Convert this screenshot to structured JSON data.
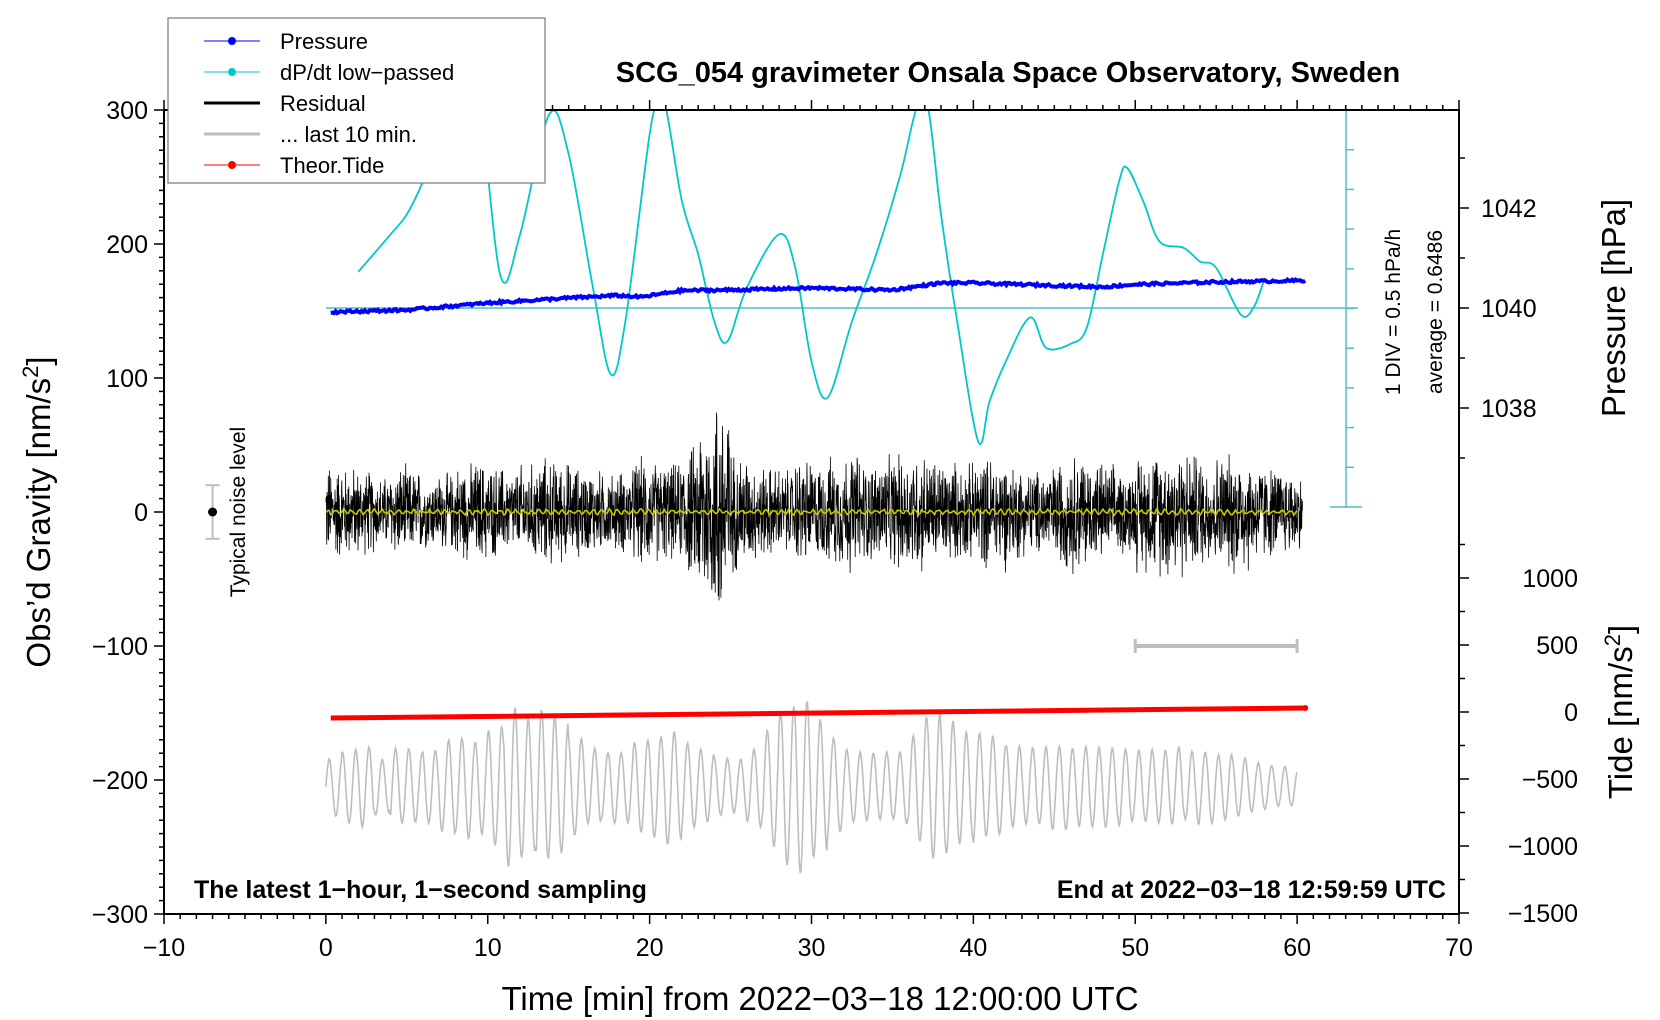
{
  "chart_data": {
    "type": "line",
    "title": "SCG_054 gravimeter Onsala Space Observatory, Sweden",
    "xlabel": "Time [min] from 2022−03−18 12:00:00 UTC",
    "ylabel_left": "Obs’d Gravity [nm/s",
    "ylabel_left_sup": "2",
    "ylabel_left_end": "]",
    "ylabel_right_pressure": "Pressure [hPa]",
    "ylabel_right_tide": "Tide [nm/s",
    "ylabel_right_tide_sup": "2",
    "ylabel_right_tide_end": "]",
    "xlim": [
      -10,
      70
    ],
    "ylim": [
      -300,
      300
    ],
    "x_ticks": [
      "−10",
      "0",
      "10",
      "20",
      "30",
      "40",
      "50",
      "60",
      "70"
    ],
    "y_ticks": [
      "300",
      "200",
      "100",
      "0",
      "−100",
      "−200",
      "−300"
    ],
    "pressure_ticks": [
      "1042",
      "1040",
      "1038"
    ],
    "tide_ticks": [
      "1000",
      "500",
      "0",
      "−500",
      "−1000",
      "−1500"
    ],
    "legend": {
      "placement": "top-left",
      "entries": [
        {
          "label": "Pressure",
          "color": "#0000ff",
          "marker": true
        },
        {
          "label": "dP/dt low−passed",
          "color": "#00c8c8",
          "marker": true
        },
        {
          "label": "Residual",
          "color": "#000000",
          "marker": false
        },
        {
          "label": "... last 10 min.",
          "color": "#bebebe",
          "marker": false
        },
        {
          "label": "Theor.Tide",
          "color": "#ff0000",
          "marker": true
        }
      ]
    },
    "dpdt_scale_label": "1 DIV = 0.5 hPa/h",
    "dpdt_average_label": "average = 0.6486",
    "dpdt_average": 0.6486,
    "noise_label": "Typical noise level",
    "noise_level": {
      "x": -7,
      "value": 0,
      "plusminus": 20
    },
    "footer_left": "The latest 1−hour, 1−second sampling",
    "footer_right": "End at 2022−03−18 12:59:59 UTC",
    "last10_bar": {
      "from": 50,
      "to": 60,
      "value": -100
    },
    "series": [
      {
        "name": "dP/dt low-passed",
        "unit": "hPa/h",
        "x": [
          2,
          4,
          5,
          6,
          7.5,
          8.5,
          9.5,
          10.8,
          12,
          13.8,
          15,
          16.5,
          17.6,
          18.5,
          20,
          20.5,
          21,
          22,
          23,
          24,
          24.8,
          26,
          28,
          29,
          30,
          31,
          32.5,
          34,
          35.5,
          36.5,
          37.2,
          38,
          39,
          40.3,
          41,
          42,
          43.5,
          44.5,
          46,
          47,
          48,
          49,
          49.5,
          50.5,
          51.5,
          53,
          54,
          55,
          56.5,
          57.3,
          58
        ],
        "y": [
          1.1,
          1.57,
          1.82,
          2.23,
          3.0,
          3.15,
          3.15,
          1.04,
          1.57,
          3.07,
          2.57,
          0.9,
          -0.18,
          0.48,
          2.82,
          3.15,
          3.15,
          1.98,
          1.32,
          0.48,
          0.23,
          0.9,
          1.57,
          1.15,
          -0.02,
          -0.47,
          0.48,
          1.32,
          2.32,
          3.15,
          3.15,
          1.82,
          0.48,
          -1.02,
          -0.52,
          -0.02,
          0.53,
          0.15,
          0.2,
          0.4,
          1.32,
          2.23,
          2.4,
          1.98,
          1.48,
          1.4,
          1.23,
          1.15,
          0.57,
          0.65,
          1.02
        ]
      },
      {
        "name": "Pressure",
        "unit": "hPa",
        "x": [
          0.3,
          5,
          10,
          15,
          18,
          19.5,
          22,
          25,
          30,
          35,
          38,
          40,
          45,
          48,
          50,
          55,
          60.5
        ],
        "y": [
          1039.92,
          1039.96,
          1040.1,
          1040.2,
          1040.25,
          1040.22,
          1040.35,
          1040.36,
          1040.4,
          1040.36,
          1040.5,
          1040.5,
          1040.45,
          1040.42,
          1040.47,
          1040.52,
          1040.55
        ]
      },
      {
        "name": "Theor.Tide",
        "unit": "nm/s2",
        "x": [
          0.3,
          60.5
        ],
        "y": [
          -45,
          30
        ]
      },
      {
        "name": "Residual",
        "unit": "nm/s2",
        "mean": 0,
        "envelope_per_min": [
          40,
          38,
          35,
          30,
          38,
          35,
          30,
          32,
          40,
          42,
          38,
          35,
          40,
          45,
          42,
          38,
          35,
          32,
          35,
          45,
          42,
          40,
          55,
          80,
          100,
          50,
          40,
          38,
          35,
          45,
          40,
          45,
          50,
          42,
          45,
          48,
          50,
          45,
          42,
          40,
          45,
          48,
          40,
          35,
          38,
          45,
          50,
          42,
          38,
          35,
          48,
          52,
          55,
          50,
          45,
          48,
          52,
          42,
          38,
          35,
          30
        ]
      },
      {
        "name": "... last 10 min.",
        "unit": "nm/s2",
        "offset": -205,
        "amplitude_per_min": [
          25,
          28,
          30,
          22,
          35,
          40,
          45,
          55,
          50,
          40,
          45,
          60,
          55,
          70,
          75,
          60,
          45,
          35,
          30,
          35,
          38,
          45,
          40,
          40,
          35,
          32,
          38,
          50,
          60,
          65,
          55,
          45,
          40,
          42,
          40,
          35,
          45,
          55,
          50,
          45,
          50,
          55,
          50,
          45,
          40,
          35,
          30,
          30,
          32,
          35,
          40,
          45,
          45,
          35,
          30,
          25,
          22,
          20,
          20,
          22,
          20
        ],
        "period_min": 0.82
      }
    ]
  }
}
